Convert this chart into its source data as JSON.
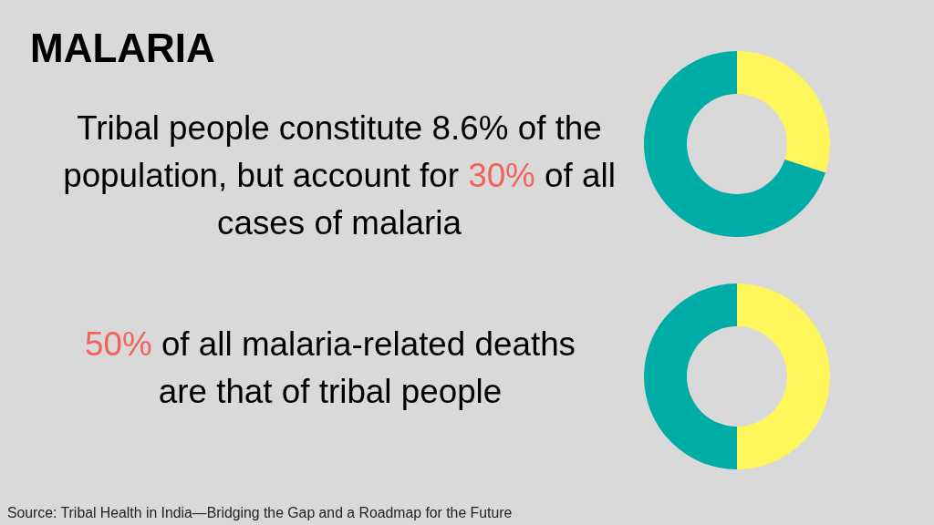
{
  "chart_data": [
    {
      "type": "donut",
      "title": "MALARIA",
      "categories": [
        null,
        null
      ],
      "values": [
        30,
        70
      ],
      "colors": [
        "#fff65c",
        "#00aca6"
      ],
      "annotations": [
        "Tribal people constitute 8.6% of the population, but account for 30% of all cases of malaria"
      ]
    },
    {
      "type": "donut",
      "categories": [
        null,
        null
      ],
      "values": [
        50,
        50
      ],
      "colors": [
        "#fff65c",
        "#00aca6"
      ],
      "annotations": [
        "50% of all malaria-related deaths are that of tribal people",
        "Source: Tribal Health in India—Bridging the Gap and a Roadmap for the Future"
      ]
    }
  ]
}
